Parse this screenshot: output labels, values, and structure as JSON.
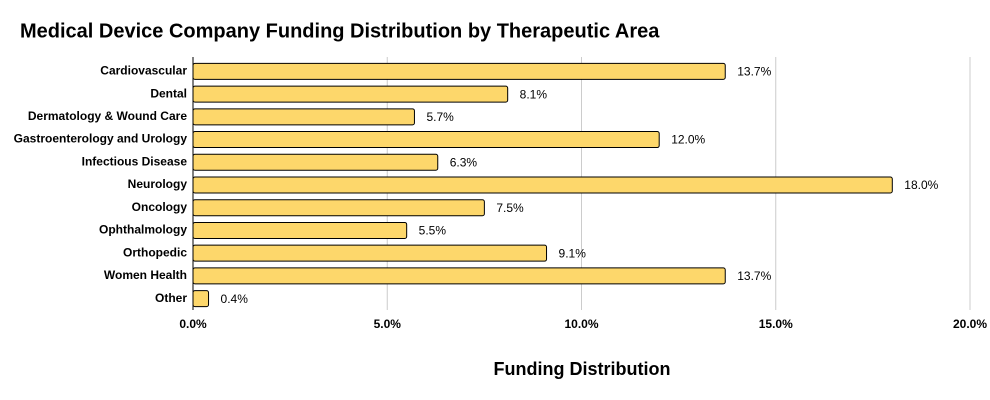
{
  "chart_data": {
    "type": "bar",
    "orientation": "horizontal",
    "title": "Medical Device Company Funding Distribution by Therapeutic Area",
    "x_label": "Funding Distribution",
    "categories": [
      "Cardiovascular",
      "Dental",
      "Dermatology & Wound Care",
      "Gastroenterology and Urology",
      "Infectious Disease",
      "Neurology",
      "Oncology",
      "Ophthalmology",
      "Orthopedic",
      "Women Health",
      "Other"
    ],
    "values": [
      13.7,
      8.1,
      5.7,
      12.0,
      6.3,
      18.0,
      7.5,
      5.5,
      9.1,
      13.7,
      0.4
    ],
    "value_labels": [
      "13.7%",
      "8.1%",
      "5.7%",
      "12.0%",
      "6.3%",
      "18.0%",
      "7.5%",
      "5.5%",
      "9.1%",
      "13.7%",
      "0.4%"
    ],
    "color": "#fdd76b",
    "xlim": [
      0,
      20
    ],
    "xticks": [
      {
        "value": 0,
        "label": "0.0%"
      },
      {
        "value": 5,
        "label": "5.0%"
      },
      {
        "value": 10,
        "label": "10.0%"
      },
      {
        "value": 15,
        "label": "15.0%"
      },
      {
        "value": 20,
        "label": "20.0%"
      }
    ],
    "grid": true
  }
}
